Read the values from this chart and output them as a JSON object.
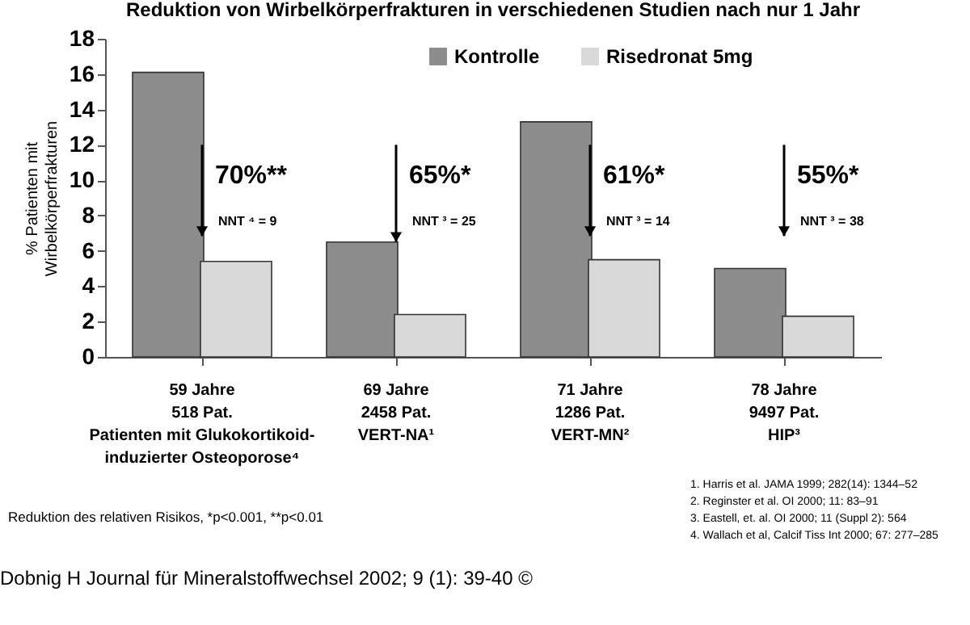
{
  "chart_data": {
    "type": "bar",
    "title": "Reduktion von Wirbelkörperfrakturen in verschiedenen Studien nach nur 1 Jahr",
    "ylabel": "% Patienten mit\nWirbelkörperfrakturen",
    "categories": [
      "59 Jahre\n518 Pat.\nPatienten mit Glukokortikoid-\ninduzierter Osteoporose⁴",
      "69 Jahre\n2458 Pat.\nVERT-NA¹",
      "71 Jahre\n1286 Pat.\nVERT-MN²",
      "78 Jahre\n9497 Pat.\nHIP³"
    ],
    "series": [
      {
        "name": "Kontrolle",
        "color": "#8c8c8c",
        "values": [
          16.1,
          6.5,
          13.3,
          5.0
        ]
      },
      {
        "name": "Risedronat 5mg",
        "color": "#d9d9d9",
        "values": [
          5.4,
          2.4,
          5.5,
          2.3
        ]
      }
    ],
    "ylim": [
      0,
      18
    ],
    "yticks": [
      0,
      2,
      4,
      6,
      8,
      10,
      12,
      14,
      16,
      18
    ],
    "grid": false,
    "legend": "top",
    "annotations": [
      {
        "text": "70%**",
        "x": "59 Jahre\n518 Pat.\nPatienten mit Glukokortikoid-\ninduzierter Osteoporose⁴"
      },
      "NNT ⁴ = 9",
      {
        "text": "65%*",
        "x": "69 Jahre\n2458 Pat.\nVERT-NA¹",
        "y": 6.5
      },
      "NNT ³ = 25",
      {
        "text": "61%*",
        "x": "71 Jahre\n1286 Pat.\nVERT-MN²"
      },
      "NNT ³ = 14",
      "55%*",
      "NNT ³ = 38",
      "1. Harris et al.  JAMA 1999; 282(14):  1344–52",
      "2. Reginster  et al. OI  2000; 11:  83–91",
      "3. Eastell, et. al. OI  2000; 11 (Suppl 2): 564",
      "4. Wallach et al, Calcif Tiss Int 2000;  67: 277–285",
      "Reduktion des relativen Risikos, *p<0.001, **p<0.01",
      "Dobnig H Journal für Mineralstoffwechsel 2002; 9 (1): 39-40 ©"
    ]
  }
}
